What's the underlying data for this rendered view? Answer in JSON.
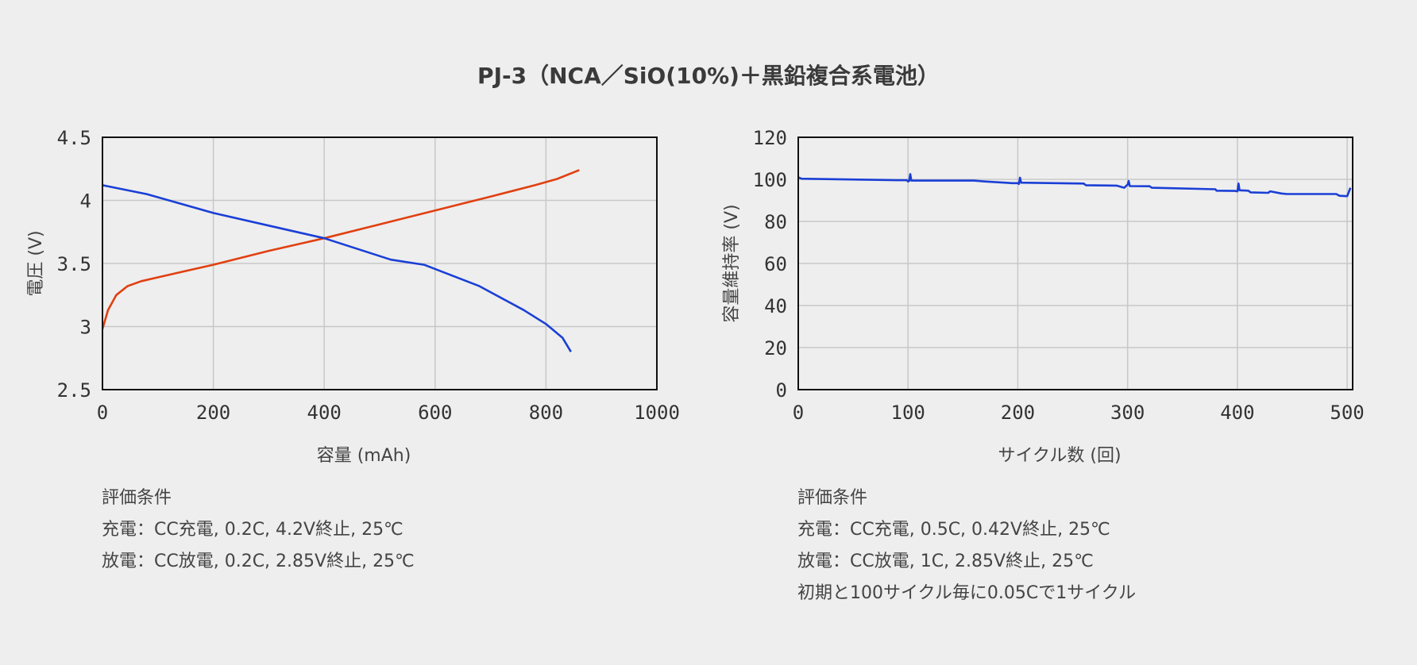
{
  "title": "PJ-3（NCA／SiO(10%)＋黒鉛複合系電池）",
  "chart_data": [
    {
      "type": "line",
      "xlabel": "容量 (mAh)",
      "ylabel": "電圧 (V)",
      "xlim": [
        0,
        1000
      ],
      "ylim": [
        2.5,
        4.5
      ],
      "x_ticks": [
        "0",
        "200",
        "400",
        "600",
        "800",
        "1000"
      ],
      "y_ticks": [
        "4.5",
        "4",
        "3.5",
        "3",
        "2.5"
      ],
      "grid": true,
      "series": [
        {
          "color": "#e04010",
          "points": [
            [
              0,
              2.98
            ],
            [
              10,
              3.13
            ],
            [
              25,
              3.25
            ],
            [
              45,
              3.32
            ],
            [
              70,
              3.36
            ],
            [
              100,
              3.39
            ],
            [
              150,
              3.44
            ],
            [
              200,
              3.49
            ],
            [
              300,
              3.6
            ],
            [
              400,
              3.7
            ],
            [
              500,
              3.81
            ],
            [
              600,
              3.92
            ],
            [
              700,
              4.03
            ],
            [
              780,
              4.12
            ],
            [
              820,
              4.17
            ],
            [
              860,
              4.24
            ]
          ]
        },
        {
          "color": "#1a3fd6",
          "points": [
            [
              0,
              4.12
            ],
            [
              80,
              4.05
            ],
            [
              200,
              3.9
            ],
            [
              300,
              3.8
            ],
            [
              400,
              3.7
            ],
            [
              520,
              3.53
            ],
            [
              580,
              3.49
            ],
            [
              680,
              3.32
            ],
            [
              760,
              3.13
            ],
            [
              800,
              3.02
            ],
            [
              830,
              2.91
            ],
            [
              845,
              2.8
            ]
          ]
        }
      ]
    },
    {
      "type": "line",
      "xlabel": "サイクル数 (回)",
      "ylabel": "容量維持率 (V)",
      "xlim": [
        0,
        505
      ],
      "ylim": [
        0,
        120
      ],
      "x_ticks": [
        "0",
        "100",
        "200",
        "300",
        "400",
        "500"
      ],
      "y_ticks": [
        "120",
        "100",
        "80",
        "60",
        "40",
        "20",
        "0"
      ],
      "grid": true,
      "series": [
        {
          "color": "#1a3fd6",
          "points": [
            [
              0,
              101
            ],
            [
              3,
              100.3
            ],
            [
              90,
              99.6
            ],
            [
              99,
              99.6
            ],
            [
              100,
              99.0
            ],
            [
              101,
              99.2
            ],
            [
              102,
              102.5
            ],
            [
              103,
              99.4
            ],
            [
              160,
              99.4
            ],
            [
              170,
              99.0
            ],
            [
              195,
              98.2
            ],
            [
              200,
              98.2
            ],
            [
              201,
              97.8
            ],
            [
              202,
              100.8
            ],
            [
              203,
              98.4
            ],
            [
              260,
              98.0
            ],
            [
              262,
              97.2
            ],
            [
              290,
              97.0
            ],
            [
              297,
              96.0
            ],
            [
              300,
              97.5
            ],
            [
              301,
              99.2
            ],
            [
              302,
              96.8
            ],
            [
              320,
              96.7
            ],
            [
              322,
              96.0
            ],
            [
              380,
              95.3
            ],
            [
              381,
              94.6
            ],
            [
              398,
              94.5
            ],
            [
              400,
              94.3
            ],
            [
              401,
              98.0
            ],
            [
              402,
              94.8
            ],
            [
              410,
              94.6
            ],
            [
              412,
              93.8
            ],
            [
              428,
              93.6
            ],
            [
              430,
              94.3
            ],
            [
              440,
              93.3
            ],
            [
              445,
              93.0
            ],
            [
              490,
              93.0
            ],
            [
              493,
              92.2
            ],
            [
              500,
              92.0
            ],
            [
              503,
              96.0
            ]
          ]
        }
      ]
    }
  ],
  "conditions_left": [
    "評価条件",
    "充電：CC充電, 0.2C, 4.2V終止, 25℃",
    "放電：CC放電, 0.2C, 2.85V終止, 25℃"
  ],
  "conditions_right": [
    "評価条件",
    "充電：CC充電, 0.5C, 0.42V終止, 25℃",
    "放電：CC放電, 1C, 2.85V終止, 25℃",
    "初期と100サイクル毎に0.05Cで1サイクル"
  ]
}
